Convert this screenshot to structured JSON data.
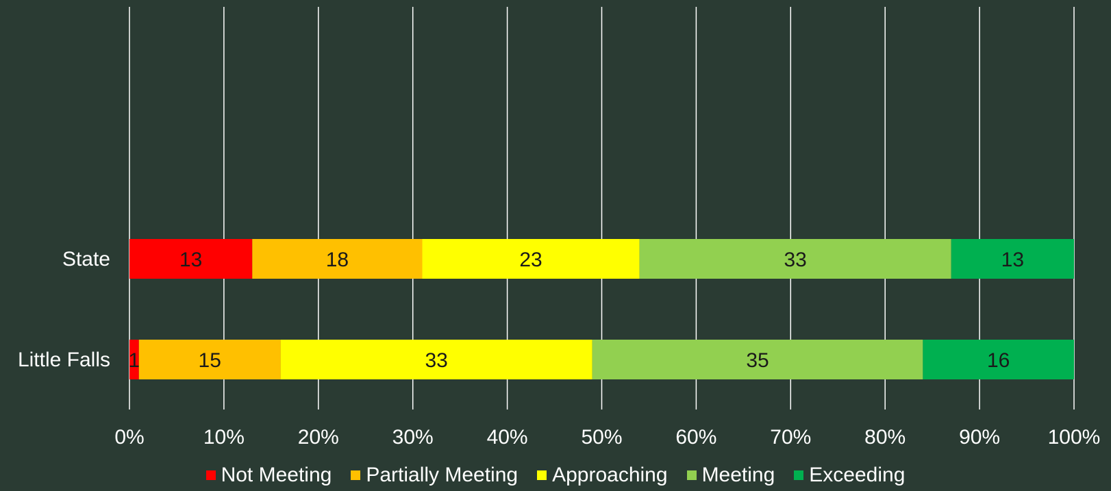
{
  "chart_data": {
    "type": "bar",
    "orientation": "horizontal",
    "stacked": true,
    "percent_stacked": true,
    "categories": [
      "State",
      "Little Falls"
    ],
    "series": [
      {
        "name": "Not Meeting",
        "values": [
          13,
          1
        ],
        "color": "#ff0000"
      },
      {
        "name": "Partially Meeting",
        "values": [
          18,
          15
        ],
        "color": "#ffc000"
      },
      {
        "name": "Approaching",
        "values": [
          23,
          33
        ],
        "color": "#ffff00"
      },
      {
        "name": "Meeting",
        "values": [
          33,
          35
        ],
        "color": "#92d050"
      },
      {
        "name": "Exceeding",
        "values": [
          13,
          16
        ],
        "color": "#00b050"
      }
    ],
    "x_ticks": [
      "0%",
      "10%",
      "20%",
      "30%",
      "40%",
      "50%",
      "60%",
      "70%",
      "80%",
      "90%",
      "100%"
    ],
    "xlim": [
      0,
      100
    ],
    "grid": true,
    "legend_position": "bottom",
    "background_color": "#2a3b33",
    "text_color": "#ffffff"
  }
}
